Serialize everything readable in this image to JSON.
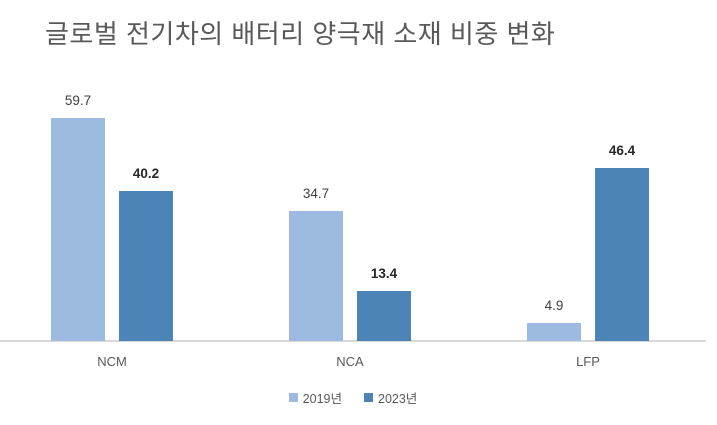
{
  "title": "글로벌 전기차의 배터리 양극재 소재 비중 변화",
  "chart_data": {
    "type": "bar",
    "title": "글로벌 전기차의 배터리 양극재 소재 비중 변화",
    "categories": [
      "NCM",
      "NCA",
      "LFP"
    ],
    "series": [
      {
        "name": "2019년",
        "color": "#9DBBE0",
        "values": [
          59.7,
          34.7,
          4.9
        ],
        "value_label_bold": false
      },
      {
        "name": "2023년",
        "color": "#4C84B8",
        "values": [
          40.2,
          13.4,
          46.4
        ],
        "value_label_bold": true
      }
    ],
    "xlabel": "",
    "ylabel": "",
    "ylim": [
      0,
      65
    ],
    "grid": false,
    "y_axis_visible": false,
    "value_labels": true,
    "legend_position": "bottom"
  },
  "colors": {
    "background": "#FFFFFF",
    "title_text": "#595959",
    "axis_line": "#D9D9D9",
    "category_label_text": "#595959",
    "value_label_regular": "#404040",
    "value_label_bold": "#262626",
    "legend_text": "#595959"
  }
}
